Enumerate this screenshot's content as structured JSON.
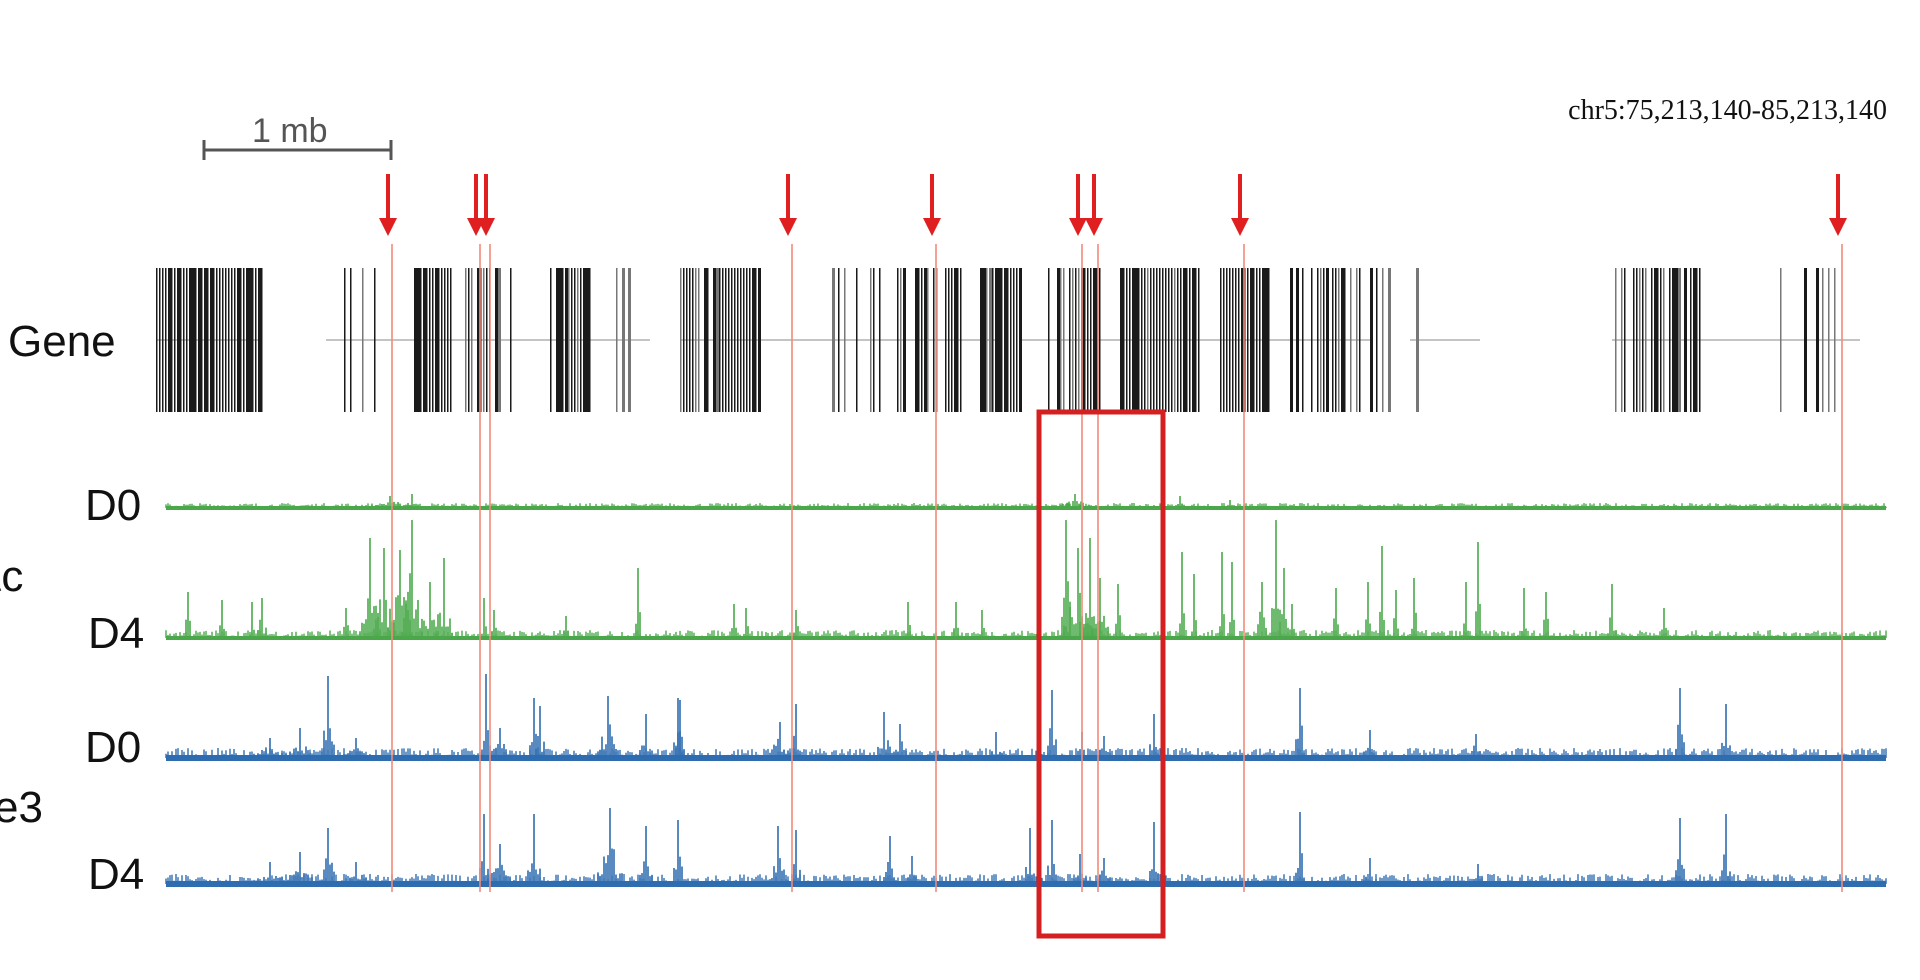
{
  "header": {
    "coordinates": "chr5:75,213,140-85,213,140",
    "scale_bar_label": "1 mb"
  },
  "tracks": {
    "gene_label": "Gene",
    "h3k27ac_partial": "Ac",
    "h3k4me3_partial": "e3",
    "h3k27ac_d0": "D0",
    "h3k27ac_d4": "D4",
    "h3k4me3_d0": "D0",
    "h3k4me3_d4": "D4"
  },
  "colors": {
    "arrow": "#e02020",
    "marker_line": "#f08a7a",
    "highlight_box": "#d42020",
    "ac_track": "#4aa84a",
    "me3_track": "#2f6db0",
    "gene": "#1a1a1a"
  },
  "icons": {
    "arrow": "down-arrow-icon"
  }
}
